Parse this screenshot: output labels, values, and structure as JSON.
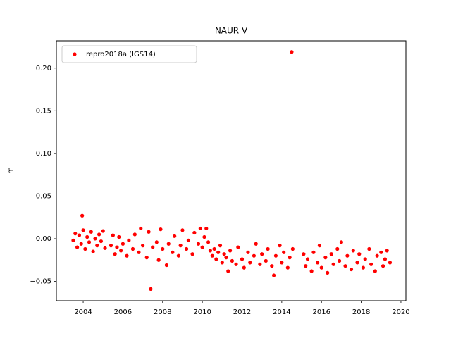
{
  "chart_data": {
    "type": "scatter",
    "title": "NAUR V",
    "y_label": "m",
    "xlim": [
      2002.65,
      2020.25
    ],
    "ylim": [
      -0.0727,
      0.232
    ],
    "xticks": [
      2004,
      2006,
      2008,
      2010,
      2012,
      2014,
      2016,
      2018,
      2020
    ],
    "yticks": [
      {
        "value": -0.05,
        "label": "−0.05"
      },
      {
        "value": 0,
        "label": "0.00"
      },
      {
        "value": 0.05,
        "label": "0.05"
      },
      {
        "value": 0.1,
        "label": "0.10"
      },
      {
        "value": 0.15,
        "label": "0.15"
      },
      {
        "value": 0.2,
        "label": "0.20"
      }
    ],
    "legend": "upper left",
    "series": [
      {
        "name": "repro2018a (IGS14)",
        "color": "#ff0000",
        "x": [
          2003.5,
          2003.6,
          2003.7,
          2003.8,
          2003.9,
          2003.95,
          2004.0,
          2004.1,
          2004.2,
          2004.3,
          2004.4,
          2004.5,
          2004.6,
          2004.7,
          2004.8,
          2004.9,
          2005.0,
          2005.1,
          2005.4,
          2005.5,
          2005.6,
          2005.7,
          2005.8,
          2005.9,
          2006.0,
          2006.2,
          2006.3,
          2006.5,
          2006.6,
          2006.8,
          2006.9,
          2007.0,
          2007.2,
          2007.3,
          2007.4,
          2007.5,
          2007.7,
          2007.8,
          2007.9,
          2008.0,
          2008.2,
          2008.3,
          2008.5,
          2008.6,
          2008.8,
          2008.9,
          2009.0,
          2009.2,
          2009.3,
          2009.5,
          2009.6,
          2009.8,
          2009.9,
          2010.0,
          2010.1,
          2010.2,
          2010.3,
          2010.4,
          2010.5,
          2010.6,
          2010.7,
          2010.8,
          2010.9,
          2011.0,
          2011.1,
          2011.2,
          2011.3,
          2011.4,
          2011.5,
          2011.7,
          2011.8,
          2012.0,
          2012.1,
          2012.3,
          2012.4,
          2012.6,
          2012.7,
          2012.9,
          2013.0,
          2013.2,
          2013.3,
          2013.5,
          2013.6,
          2013.7,
          2013.9,
          2014.0,
          2014.1,
          2014.3,
          2014.4,
          2014.5,
          2014.55,
          2015.1,
          2015.2,
          2015.3,
          2015.5,
          2015.6,
          2015.8,
          2015.9,
          2016.0,
          2016.2,
          2016.3,
          2016.5,
          2016.6,
          2016.8,
          2016.9,
          2017.0,
          2017.2,
          2017.3,
          2017.5,
          2017.6,
          2017.8,
          2017.9,
          2018.1,
          2018.2,
          2018.4,
          2018.5,
          2018.7,
          2018.8,
          2019.0,
          2019.1,
          2019.2,
          2019.3,
          2019.45
        ],
        "values": [
          -0.002,
          0.006,
          -0.01,
          0.004,
          -0.006,
          0.027,
          0.01,
          -0.012,
          0.002,
          -0.004,
          0.008,
          -0.015,
          0.0,
          -0.008,
          0.005,
          -0.003,
          0.009,
          -0.011,
          -0.008,
          0.004,
          -0.018,
          -0.01,
          0.002,
          -0.014,
          -0.006,
          -0.02,
          -0.002,
          -0.012,
          0.005,
          -0.016,
          0.012,
          -0.008,
          -0.022,
          0.008,
          -0.059,
          -0.01,
          -0.004,
          -0.025,
          0.011,
          -0.012,
          -0.031,
          -0.006,
          -0.016,
          0.003,
          -0.02,
          -0.008,
          0.01,
          -0.012,
          -0.002,
          -0.018,
          0.007,
          -0.006,
          0.012,
          -0.01,
          0.002,
          0.012,
          -0.004,
          -0.014,
          -0.02,
          -0.012,
          -0.024,
          -0.016,
          -0.008,
          -0.028,
          -0.018,
          -0.022,
          -0.038,
          -0.014,
          -0.026,
          -0.03,
          -0.01,
          -0.024,
          -0.034,
          -0.016,
          -0.028,
          -0.02,
          -0.006,
          -0.03,
          -0.018,
          -0.026,
          -0.012,
          -0.032,
          -0.043,
          -0.02,
          -0.008,
          -0.028,
          -0.016,
          -0.034,
          -0.022,
          0.219,
          -0.012,
          -0.018,
          -0.032,
          -0.024,
          -0.038,
          -0.016,
          -0.028,
          -0.008,
          -0.034,
          -0.022,
          -0.04,
          -0.018,
          -0.03,
          -0.012,
          -0.026,
          -0.004,
          -0.032,
          -0.02,
          -0.036,
          -0.014,
          -0.028,
          -0.018,
          -0.034,
          -0.024,
          -0.012,
          -0.03,
          -0.038,
          -0.02,
          -0.016,
          -0.032,
          -0.024,
          -0.014,
          -0.028
        ]
      }
    ]
  }
}
